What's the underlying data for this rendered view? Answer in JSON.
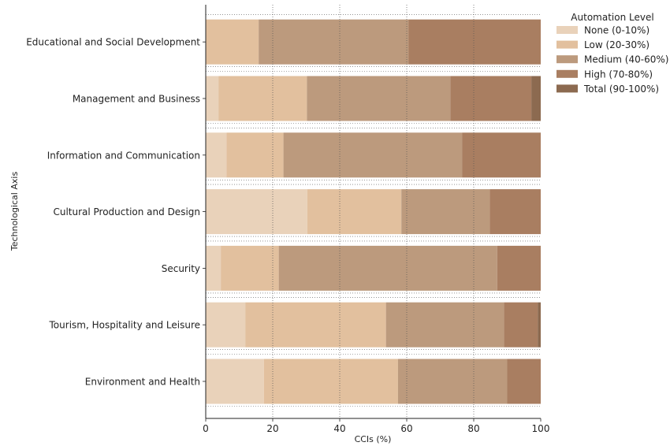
{
  "chart_data": {
    "type": "bar",
    "orientation": "horizontal",
    "stacked": true,
    "categories": [
      "Educational and Social Development",
      "Management and Business",
      "Information and Communication",
      "Cultural Production and Design",
      "Security",
      "Tourism, Hospitality and Leisure",
      "Environment and Health"
    ],
    "series": [
      {
        "name": "None (0-10%)",
        "color": "#e9d2ba",
        "values": [
          0.0,
          3.8,
          6.2,
          30.3,
          4.5,
          11.8,
          17.4
        ]
      },
      {
        "name": "Low (20-30%)",
        "color": "#e2c09e",
        "values": [
          15.8,
          26.4,
          17.0,
          28.1,
          17.3,
          42.0,
          40.0
        ]
      },
      {
        "name": "Medium (40-60%)",
        "color": "#bc9a7d",
        "values": [
          44.7,
          42.8,
          53.3,
          26.4,
          65.2,
          35.2,
          32.6
        ]
      },
      {
        "name": "High (70-80%)",
        "color": "#a97e61",
        "values": [
          39.5,
          24.2,
          23.5,
          15.2,
          13.0,
          10.1,
          10.0
        ]
      },
      {
        "name": "Total (90-100%)",
        "color": "#8c6a50",
        "values": [
          0.0,
          2.8,
          0.0,
          0.0,
          0.0,
          0.9,
          0.0
        ]
      }
    ],
    "xlabel": "CCIs (%)",
    "ylabel": "Technological Axis",
    "xlim": [
      0,
      100
    ],
    "xticks": [
      "0",
      "20",
      "40",
      "60",
      "80",
      "100"
    ],
    "grid": "vertical dotted",
    "legend": {
      "title": "Automation Level",
      "placement": "outside right-top"
    }
  }
}
